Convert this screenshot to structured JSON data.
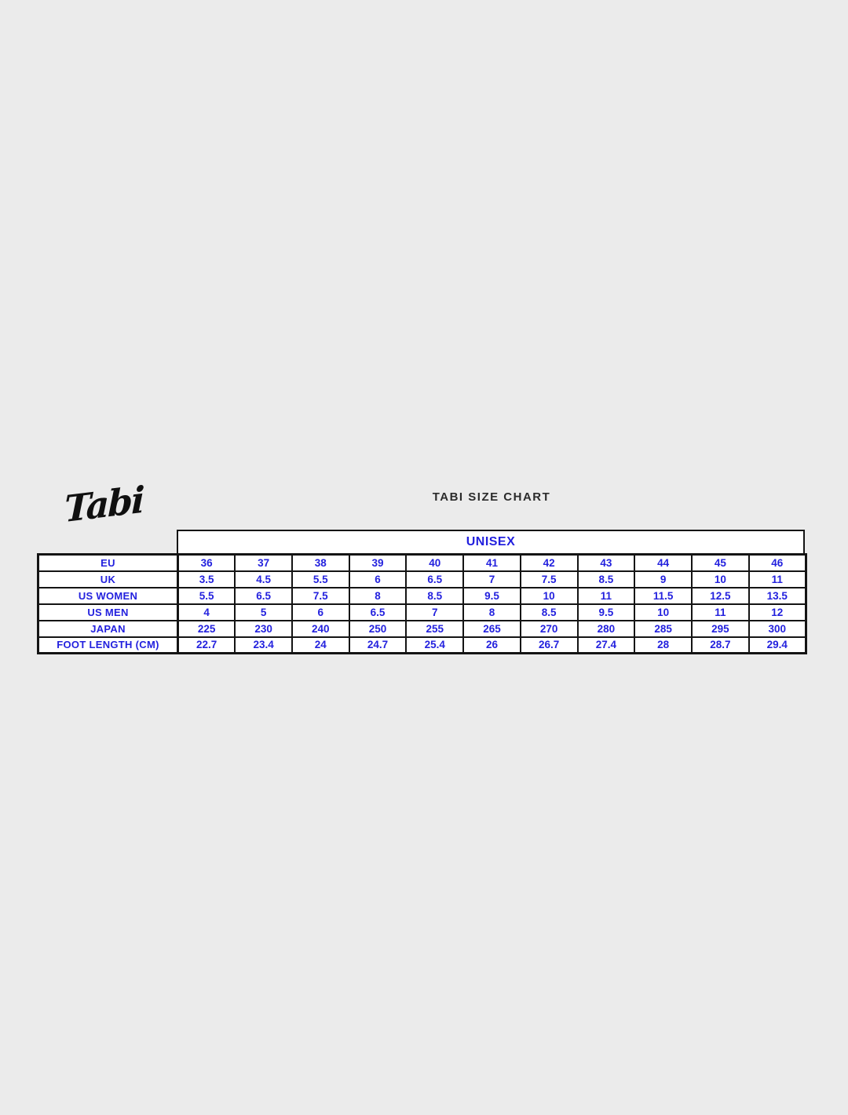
{
  "page": {
    "background": "#ebebeb"
  },
  "colors": {
    "accent_blue": "#2321de",
    "border_black": "#141414",
    "cell_background": "#ffffff",
    "title_text": "#2b2b2b"
  },
  "header": {
    "brand_logo_text": "Tabi",
    "title": "TABI SIZE CHART"
  },
  "chart_data": {
    "type": "table",
    "title": "TABI SIZE CHART",
    "group_header": "UNISEX",
    "column_count": 11,
    "rows": [
      {
        "label": "EU",
        "values": [
          "36",
          "37",
          "38",
          "39",
          "40",
          "41",
          "42",
          "43",
          "44",
          "45",
          "46"
        ]
      },
      {
        "label": "UK",
        "values": [
          "3.5",
          "4.5",
          "5.5",
          "6",
          "6.5",
          "7",
          "7.5",
          "8.5",
          "9",
          "10",
          "11"
        ]
      },
      {
        "label": "US WOMEN",
        "values": [
          "5.5",
          "6.5",
          "7.5",
          "8",
          "8.5",
          "9.5",
          "10",
          "11",
          "11.5",
          "12.5",
          "13.5"
        ]
      },
      {
        "label": "US MEN",
        "values": [
          "4",
          "5",
          "6",
          "6.5",
          "7",
          "8",
          "8.5",
          "9.5",
          "10",
          "11",
          "12"
        ]
      },
      {
        "label": "JAPAN",
        "values": [
          "225",
          "230",
          "240",
          "250",
          "255",
          "265",
          "270",
          "280",
          "285",
          "295",
          "300"
        ]
      },
      {
        "label": "FOOT LENGTH (CM)",
        "values": [
          "22.7",
          "23.4",
          "24",
          "24.7",
          "25.4",
          "26",
          "26.7",
          "27.4",
          "28",
          "28.7",
          "29.4"
        ]
      }
    ]
  }
}
